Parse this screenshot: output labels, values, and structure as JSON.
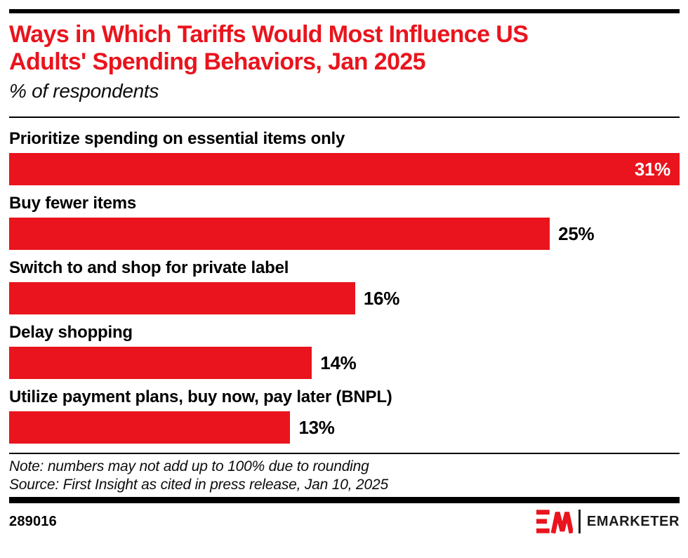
{
  "header": {
    "title_lines": [
      "Ways in Which Tariffs Would Most Influence US",
      "Adults' Spending Behaviors, Jan 2025"
    ],
    "subtitle": "% of respondents"
  },
  "chart_data": {
    "type": "bar",
    "orientation": "horizontal",
    "title": "Ways in Which Tariffs Would Most Influence US Adults' Spending Behaviors, Jan 2025",
    "subtitle": "% of respondents",
    "categories": [
      "Prioritize spending on essential items only",
      "Buy fewer items",
      "Switch to and shop for private label",
      "Delay shopping",
      "Utilize payment plans, buy now, pay later (BNPL)"
    ],
    "values": [
      31,
      25,
      16,
      14,
      13
    ],
    "display_values": [
      "31%",
      "25%",
      "16%",
      "14%",
      "13%"
    ],
    "xlim": [
      0,
      31
    ],
    "xlabel": "",
    "ylabel": "",
    "grid": false,
    "legend": false,
    "bar_color": "#e9141d",
    "value_label_positions": [
      "inside",
      "outside",
      "outside",
      "outside",
      "outside"
    ]
  },
  "footer": {
    "note": "Note: numbers may not add up to 100% due to rounding",
    "source": "Source: First Insight as cited in press release, Jan 10, 2025",
    "chart_id": "289016",
    "brand": "EMARKETER"
  },
  "colors": {
    "accent_red": "#e9141d",
    "text_black": "#000000"
  }
}
